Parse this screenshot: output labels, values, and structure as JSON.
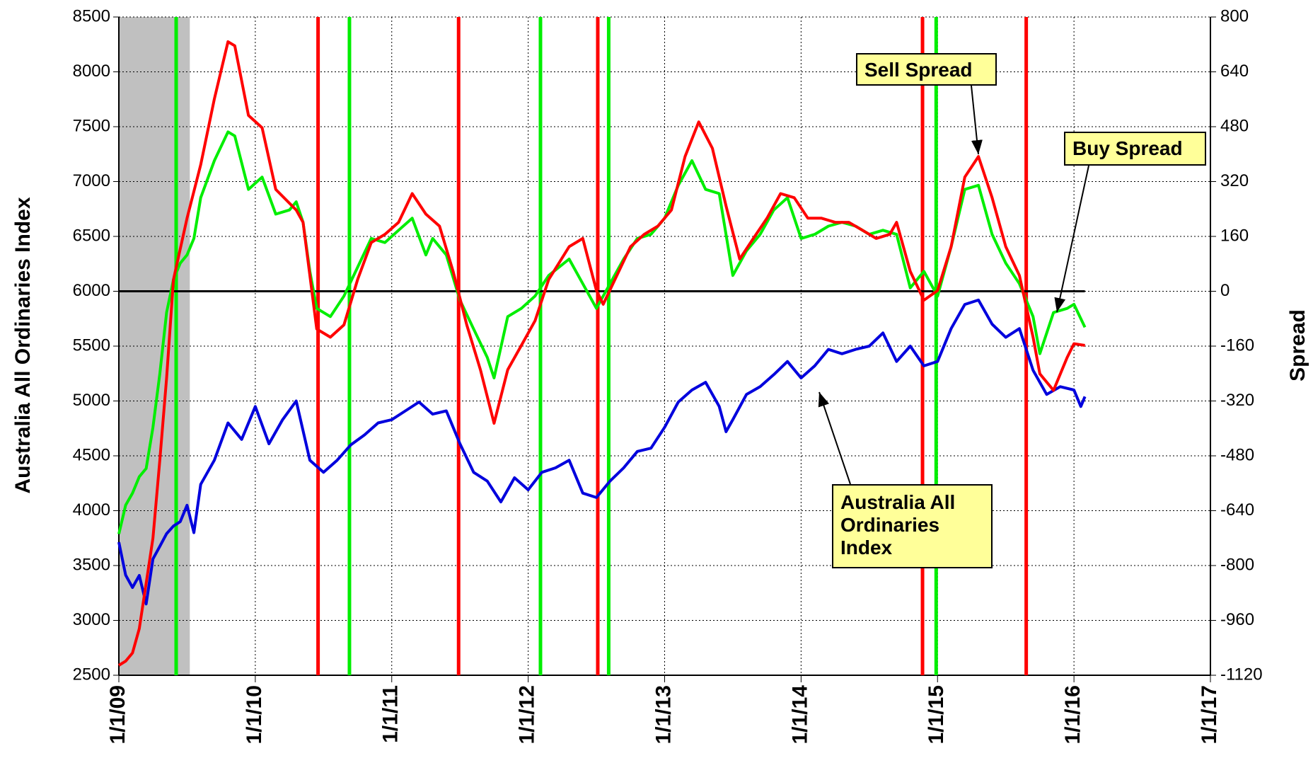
{
  "chart_data": {
    "type": "line",
    "y_label": "Australia All Ordinaries Index",
    "y2_label": "Spread",
    "xlim": [
      2009,
      2017
    ],
    "xticks": [
      {
        "value": 2009,
        "label": "1/1/09"
      },
      {
        "value": 2010,
        "label": "1/1/10"
      },
      {
        "value": 2011,
        "label": "1/1/11"
      },
      {
        "value": 2012,
        "label": "1/1/12"
      },
      {
        "value": 2013,
        "label": "1/1/13"
      },
      {
        "value": 2014,
        "label": "1/1/14"
      },
      {
        "value": 2015,
        "label": "1/1/15"
      },
      {
        "value": 2016,
        "label": "1/1/16"
      },
      {
        "value": 2017,
        "label": "1/1/17"
      }
    ],
    "ylim": [
      2500,
      8500
    ],
    "yticks": [
      2500,
      3000,
      3500,
      4000,
      4500,
      5000,
      5500,
      6000,
      6500,
      7000,
      7500,
      8000,
      8500
    ],
    "y2lim": [
      -1120,
      800
    ],
    "y2ticks": [
      -1120,
      -960,
      -800,
      -640,
      -480,
      -320,
      -160,
      0,
      160,
      320,
      480,
      640,
      800
    ],
    "grid": true,
    "shaded_region": [
      2009,
      2009.52
    ],
    "shade_color": "#c0c0c0",
    "buy_signals": [
      2009.42,
      2010.69,
      2012.09,
      2012.59,
      2014.99
    ],
    "buy_signal_color": "#00ee00",
    "sell_signals": [
      2010.46,
      2011.49,
      2012.51,
      2014.89,
      2015.65
    ],
    "sell_signal_color": "#ff0000",
    "series": [
      {
        "name": "Australia All Ordinaries Index",
        "color": "#0000dd",
        "x": [
          2009.0,
          2009.05,
          2009.1,
          2009.15,
          2009.2,
          2009.25,
          2009.3,
          2009.35,
          2009.4,
          2009.45,
          2009.5,
          2009.55,
          2009.6,
          2009.7,
          2009.8,
          2009.9,
          2010.0,
          2010.1,
          2010.2,
          2010.3,
          2010.4,
          2010.5,
          2010.6,
          2010.7,
          2010.8,
          2010.9,
          2011.0,
          2011.1,
          2011.2,
          2011.3,
          2011.4,
          2011.5,
          2011.6,
          2011.7,
          2011.8,
          2011.9,
          2012.0,
          2012.1,
          2012.2,
          2012.3,
          2012.4,
          2012.5,
          2012.6,
          2012.7,
          2012.8,
          2012.9,
          2013.0,
          2013.1,
          2013.2,
          2013.3,
          2013.4,
          2013.45,
          2013.5,
          2013.6,
          2013.7,
          2013.8,
          2013.9,
          2014.0,
          2014.1,
          2014.2,
          2014.3,
          2014.4,
          2014.5,
          2014.6,
          2014.7,
          2014.8,
          2014.9,
          2015.0,
          2015.1,
          2015.2,
          2015.3,
          2015.4,
          2015.5,
          2015.6,
          2015.7,
          2015.8,
          2015.9,
          2016.0,
          2016.05,
          2016.08
        ],
        "values": [
          3713,
          3413,
          3300,
          3410,
          3150,
          3560,
          3675,
          3790,
          3860,
          3900,
          4050,
          3800,
          4240,
          4460,
          4800,
          4650,
          4950,
          4610,
          4830,
          5000,
          4460,
          4350,
          4460,
          4600,
          4690,
          4800,
          4830,
          4910,
          4990,
          4880,
          4910,
          4610,
          4350,
          4270,
          4080,
          4300,
          4190,
          4350,
          4390,
          4460,
          4160,
          4120,
          4270,
          4390,
          4540,
          4570,
          4760,
          4990,
          5100,
          5170,
          4950,
          4720,
          4830,
          5060,
          5130,
          5240,
          5360,
          5210,
          5320,
          5470,
          5430,
          5470,
          5500,
          5620,
          5360,
          5500,
          5320,
          5360,
          5660,
          5880,
          5920,
          5700,
          5580,
          5660,
          5280,
          5060,
          5130,
          5100,
          4950,
          5040
        ]
      },
      {
        "name": "Buy Spread",
        "color": "#00ee00",
        "axis": "y2",
        "x": [
          2009.0,
          2009.05,
          2009.1,
          2009.15,
          2009.2,
          2009.25,
          2009.3,
          2009.35,
          2009.4,
          2009.45,
          2009.5,
          2009.55,
          2009.6,
          2009.7,
          2009.8,
          2009.85,
          2009.95,
          2010.05,
          2010.15,
          2010.25,
          2010.3,
          2010.35,
          2010.4,
          2010.45,
          2010.55,
          2010.65,
          2010.75,
          2010.85,
          2010.95,
          2011.05,
          2011.15,
          2011.25,
          2011.3,
          2011.4,
          2011.5,
          2011.6,
          2011.7,
          2011.75,
          2011.85,
          2011.95,
          2012.05,
          2012.15,
          2012.3,
          2012.4,
          2012.5,
          2012.6,
          2012.7,
          2012.8,
          2012.9,
          2013.0,
          2013.1,
          2013.2,
          2013.3,
          2013.4,
          2013.5,
          2013.6,
          2013.7,
          2013.8,
          2013.9,
          2014.0,
          2014.1,
          2014.2,
          2014.3,
          2014.4,
          2014.5,
          2014.6,
          2014.7,
          2014.8,
          2014.9,
          2015.0,
          2015.1,
          2015.2,
          2015.3,
          2015.4,
          2015.5,
          2015.6,
          2015.7,
          2015.75,
          2015.85,
          2015.95,
          2016.0,
          2016.08
        ],
        "values": [
          -708,
          -624,
          -589,
          -541,
          -517,
          -397,
          -241,
          -62,
          34,
          82,
          106,
          154,
          273,
          381,
          465,
          453,
          297,
          333,
          225,
          237,
          261,
          201,
          58,
          -50,
          -74,
          -14,
          70,
          154,
          142,
          178,
          213,
          106,
          154,
          106,
          -26,
          -110,
          -193,
          -253,
          -74,
          -50,
          -14,
          46,
          94,
          22,
          -50,
          22,
          94,
          154,
          166,
          213,
          309,
          381,
          297,
          285,
          46,
          118,
          166,
          237,
          273,
          154,
          166,
          190,
          201,
          190,
          166,
          178,
          166,
          10,
          58,
          -14,
          130,
          297,
          309,
          166,
          82,
          22,
          -74,
          -182,
          -62,
          -50,
          -38,
          -105
        ]
      },
      {
        "name": "Sell Spread",
        "color": "#ff0000",
        "axis": "y2",
        "x": [
          2009.0,
          2009.05,
          2009.1,
          2009.15,
          2009.2,
          2009.25,
          2009.3,
          2009.35,
          2009.4,
          2009.5,
          2009.6,
          2009.7,
          2009.8,
          2009.85,
          2009.95,
          2010.05,
          2010.15,
          2010.3,
          2010.35,
          2010.45,
          2010.55,
          2010.65,
          2010.75,
          2010.85,
          2010.95,
          2011.05,
          2011.15,
          2011.25,
          2011.35,
          2011.45,
          2011.55,
          2011.65,
          2011.75,
          2011.85,
          2011.95,
          2012.05,
          2012.15,
          2012.3,
          2012.4,
          2012.5,
          2012.55,
          2012.65,
          2012.75,
          2012.85,
          2012.95,
          2013.05,
          2013.15,
          2013.25,
          2013.35,
          2013.45,
          2013.55,
          2013.65,
          2013.75,
          2013.85,
          2013.95,
          2014.05,
          2014.15,
          2014.25,
          2014.35,
          2014.45,
          2014.55,
          2014.65,
          2014.7,
          2014.8,
          2014.9,
          2015.0,
          2015.1,
          2015.2,
          2015.3,
          2015.4,
          2015.5,
          2015.6,
          2015.7,
          2015.75,
          2015.85,
          2015.95,
          2016.0,
          2016.08
        ],
        "values": [
          -1091,
          -1079,
          -1055,
          -984,
          -852,
          -720,
          -493,
          -253,
          34,
          213,
          369,
          561,
          728,
          716,
          513,
          477,
          297,
          237,
          201,
          -110,
          -134,
          -98,
          34,
          142,
          166,
          201,
          285,
          225,
          190,
          58,
          -98,
          -229,
          -385,
          -229,
          -158,
          -86,
          34,
          130,
          154,
          2,
          -38,
          46,
          130,
          166,
          190,
          237,
          393,
          494,
          417,
          249,
          94,
          154,
          213,
          285,
          273,
          213,
          213,
          201,
          201,
          178,
          154,
          166,
          201,
          58,
          -26,
          2,
          130,
          333,
          393,
          273,
          130,
          46,
          -134,
          -241,
          -289,
          -193,
          -153,
          -158
        ]
      }
    ]
  }
}
